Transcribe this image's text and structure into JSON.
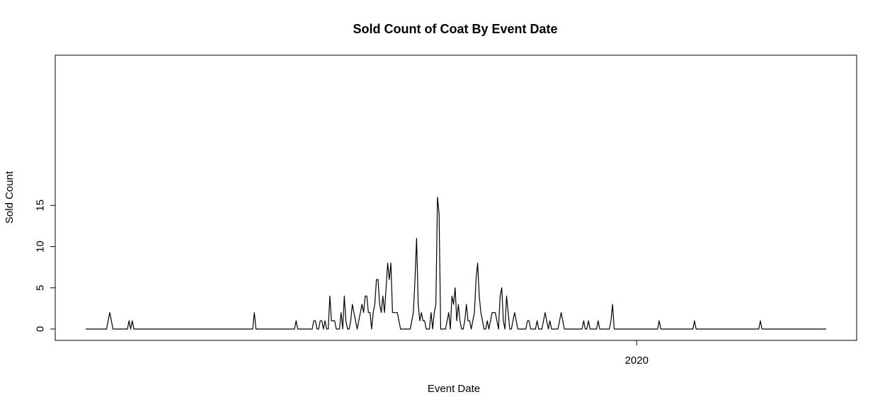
{
  "chart_data": {
    "type": "line",
    "title": "Sold Count of Coat By Event Date",
    "xlabel": "Event Date",
    "ylabel": "Sold Count",
    "ylim": [
      0,
      16
    ],
    "y_ticks": [
      0,
      5,
      10,
      15
    ],
    "x_tick_labels": [
      {
        "label": "2020",
        "position_index": 343
      }
    ],
    "grid": false,
    "legend": "none",
    "line_color": "#000000",
    "series": [
      {
        "values": [
          0,
          0,
          0,
          0,
          0,
          0,
          0,
          0,
          0,
          0,
          0,
          0,
          0,
          0,
          1,
          2,
          1,
          0,
          0,
          0,
          0,
          0,
          0,
          0,
          0,
          0,
          0,
          1,
          0,
          1,
          0,
          0,
          0,
          0,
          0,
          0,
          0,
          0,
          0,
          0,
          0,
          0,
          0,
          0,
          0,
          0,
          0,
          0,
          0,
          0,
          0,
          0,
          0,
          0,
          0,
          0,
          0,
          0,
          0,
          0,
          0,
          0,
          0,
          0,
          0,
          0,
          0,
          0,
          0,
          0,
          0,
          0,
          0,
          0,
          0,
          0,
          0,
          0,
          0,
          0,
          0,
          0,
          0,
          0,
          0,
          0,
          0,
          0,
          0,
          0,
          0,
          0,
          0,
          0,
          0,
          0,
          0,
          0,
          0,
          0,
          0,
          0,
          0,
          0,
          0,
          2,
          0,
          0,
          0,
          0,
          0,
          0,
          0,
          0,
          0,
          0,
          0,
          0,
          0,
          0,
          0,
          0,
          0,
          0,
          0,
          0,
          0,
          0,
          0,
          0,
          0,
          1,
          0,
          0,
          0,
          0,
          0,
          0,
          0,
          0,
          0,
          0,
          1,
          1,
          0,
          0,
          1,
          1,
          0,
          1,
          0,
          0,
          4,
          1,
          1,
          1,
          0,
          0,
          0,
          2,
          0,
          4,
          1,
          0,
          0,
          1,
          3,
          2,
          1,
          0,
          1,
          2,
          3,
          2,
          4,
          4,
          2,
          2,
          0,
          2,
          3,
          6,
          6,
          3,
          2,
          4,
          2,
          5,
          8,
          6,
          8,
          2,
          2,
          2,
          2,
          1,
          0,
          0,
          0,
          0,
          0,
          0,
          0,
          1,
          2,
          6,
          11,
          3,
          1,
          2,
          1,
          1,
          0,
          0,
          0,
          2,
          0,
          2,
          3,
          16,
          14,
          0,
          0,
          0,
          0,
          1,
          2,
          0,
          4,
          3,
          5,
          1,
          3,
          1,
          0,
          0,
          1,
          3,
          1,
          1,
          0,
          1,
          2,
          6,
          8,
          4,
          2,
          1,
          0,
          0,
          1,
          0,
          1,
          2,
          2,
          2,
          1,
          0,
          4,
          5,
          1,
          0,
          4,
          2,
          0,
          0,
          1,
          2,
          1,
          0,
          0,
          0,
          0,
          0,
          0,
          1,
          1,
          0,
          0,
          0,
          0,
          1,
          0,
          0,
          0,
          1,
          2,
          1,
          0,
          1,
          0,
          0,
          0,
          0,
          0,
          1,
          2,
          1,
          0,
          0,
          0,
          0,
          0,
          0,
          0,
          0,
          0,
          0,
          0,
          0,
          1,
          0,
          0,
          1,
          0,
          0,
          0,
          0,
          0,
          1,
          0,
          0,
          0,
          0,
          0,
          0,
          0,
          1,
          3,
          0,
          0,
          0,
          0,
          0,
          0,
          0,
          0,
          0,
          0,
          0,
          0,
          0,
          0,
          0,
          0,
          0,
          0,
          0,
          0,
          0,
          0,
          0,
          0,
          0,
          0,
          0,
          0,
          1,
          0,
          0,
          0,
          0,
          0,
          0,
          0,
          0,
          0,
          0,
          0,
          0,
          0,
          0,
          0,
          0,
          0,
          0,
          0,
          0,
          0,
          1,
          0,
          0,
          0,
          0,
          0,
          0,
          0,
          0,
          0,
          0,
          0,
          0,
          0,
          0,
          0,
          0,
          0,
          0,
          0,
          0,
          0,
          0,
          0,
          0,
          0,
          0,
          0,
          0,
          0,
          0,
          0,
          0,
          0,
          0,
          0,
          0,
          0,
          0,
          0,
          0,
          1,
          0,
          0,
          0,
          0,
          0,
          0,
          0,
          0,
          0,
          0,
          0,
          0,
          0,
          0,
          0,
          0,
          0,
          0,
          0,
          0,
          0,
          0,
          0,
          0,
          0,
          0,
          0,
          0,
          0,
          0,
          0,
          0,
          0,
          0,
          0,
          0,
          0,
          0,
          0,
          0,
          0
        ]
      }
    ]
  }
}
